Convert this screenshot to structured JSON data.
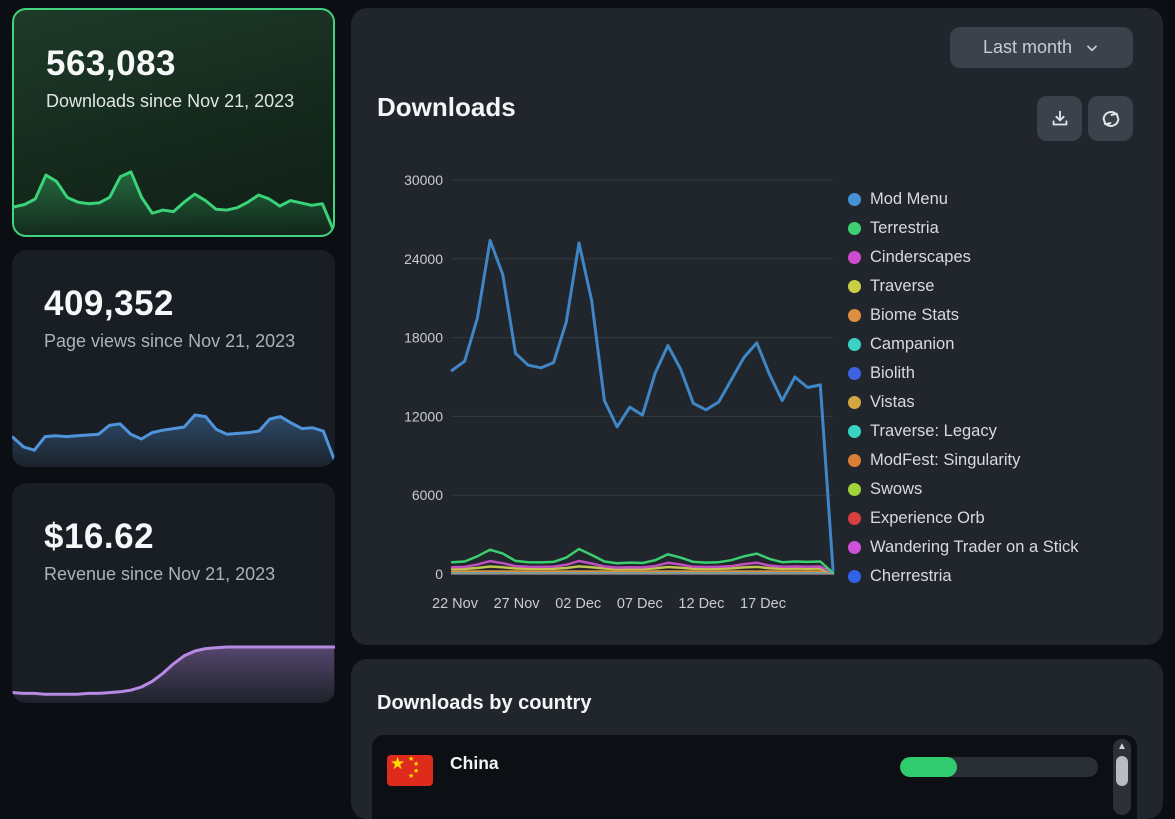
{
  "stat_cards": [
    {
      "value": "563,083",
      "label": "Downloads since Nov 21, 2023",
      "accent": "#3ad377",
      "spark": [
        30,
        33,
        40,
        70,
        62,
        42,
        36,
        34,
        35,
        42,
        68,
        74,
        42,
        22,
        26,
        24,
        36,
        46,
        38,
        27,
        26,
        29,
        36,
        45,
        40,
        31,
        38,
        35,
        32,
        34,
        2
      ]
    },
    {
      "value": "409,352",
      "label": "Page views since Nov 21, 2023",
      "accent": "#4f94dc",
      "spark": [
        32,
        20,
        16,
        33,
        34,
        33,
        34,
        35,
        36,
        47,
        49,
        36,
        30,
        38,
        41,
        43,
        45,
        60,
        58,
        42,
        36,
        37,
        38,
        40,
        55,
        58,
        50,
        43,
        44,
        40,
        5
      ]
    },
    {
      "value": "$16.62",
      "label": "Revenue since Nov 21, 2023",
      "accent": "#b88ae4",
      "spark": [
        8,
        7,
        7,
        6,
        6,
        6,
        6,
        7,
        7,
        8,
        9,
        11,
        15,
        22,
        32,
        44,
        54,
        60,
        63,
        64,
        65,
        65,
        65,
        65,
        65,
        65,
        65,
        65,
        65,
        65,
        65
      ]
    }
  ],
  "downloads_panel": {
    "title": "Downloads",
    "range_label": "Last month",
    "download_button": "download-csv",
    "refresh_button": "refresh"
  },
  "chart_data": {
    "type": "line",
    "x_start": "22 Nov",
    "x_end": "22 Dec",
    "xticks": [
      "22 Nov",
      "27 Nov",
      "02 Dec",
      "07 Dec",
      "12 Dec",
      "17 Dec"
    ],
    "yticks": [
      30000,
      24000,
      18000,
      12000,
      6000,
      0
    ],
    "ylim": [
      0,
      30000
    ],
    "grid": "horizontal",
    "legend_position": "right",
    "series": [
      {
        "name": "Mod Menu",
        "color": "#4491d6",
        "line_color": "#3e86c6",
        "values": [
          15500,
          16200,
          19500,
          25400,
          22800,
          16800,
          15900,
          15700,
          16100,
          19200,
          25200,
          20800,
          13200,
          11200,
          12700,
          12100,
          15300,
          17400,
          15600,
          13000,
          12500,
          13100,
          14800,
          16500,
          17600,
          15200,
          13200,
          15000,
          14200,
          14400,
          300
        ]
      },
      {
        "name": "Terrestria",
        "color": "#3ed173",
        "line_color": "#3bcf6f",
        "values": [
          900,
          950,
          1350,
          1850,
          1550,
          1000,
          900,
          880,
          920,
          1250,
          1900,
          1450,
          950,
          820,
          870,
          840,
          1050,
          1500,
          1250,
          920,
          870,
          900,
          1050,
          1350,
          1550,
          1150,
          900,
          950,
          920,
          950,
          80
        ]
      },
      {
        "name": "Cinderscapes",
        "color": "#cf4ccf",
        "line_color": "#c04fc0",
        "values": [
          520,
          540,
          720,
          980,
          820,
          600,
          550,
          540,
          560,
          700,
          990,
          800,
          570,
          490,
          510,
          500,
          600,
          850,
          720,
          550,
          530,
          550,
          600,
          750,
          860,
          640,
          550,
          570,
          550,
          570,
          50
        ]
      },
      {
        "name": "Traverse",
        "color": "#c9cf45",
        "line_color": "#bfc64d",
        "values": [
          380,
          390,
          460,
          570,
          510,
          420,
          400,
          395,
          405,
          460,
          580,
          510,
          415,
          370,
          385,
          378,
          425,
          530,
          480,
          400,
          390,
          398,
          425,
          500,
          540,
          440,
          405,
          415,
          405,
          415,
          35
        ]
      },
      {
        "name": "Biome Stats",
        "color": "#dd8f40",
        "values": [
          210
        ]
      },
      {
        "name": "Campanion",
        "color": "#3bd1c5",
        "values": [
          170
        ]
      },
      {
        "name": "Biolith",
        "color": "#3f63e0",
        "values": [
          130
        ]
      },
      {
        "name": "Vistas",
        "color": "#d2a741",
        "values": [
          110
        ]
      },
      {
        "name": "Traverse: Legacy",
        "color": "#37d3c3",
        "values": [
          90
        ]
      },
      {
        "name": "ModFest: Singularity",
        "color": "#dc7f36",
        "values": [
          75
        ]
      },
      {
        "name": "Swows",
        "color": "#9fd337",
        "values": [
          60
        ]
      },
      {
        "name": "Experience Orb",
        "color": "#d64040",
        "values": [
          50
        ]
      },
      {
        "name": "Wandering Trader on a Stick",
        "color": "#cd52d8",
        "values": [
          40
        ]
      },
      {
        "name": "Cherrestria",
        "color": "#2f63e8",
        "values": [
          25
        ]
      }
    ]
  },
  "country_panel": {
    "title": "Downloads by country",
    "rows": [
      {
        "country": "China",
        "flag": "china-flag",
        "bar_fill_color": "#2fcb6e",
        "bar_percent": 29
      }
    ],
    "scrollbar": {
      "up_arrow": "▲"
    }
  }
}
